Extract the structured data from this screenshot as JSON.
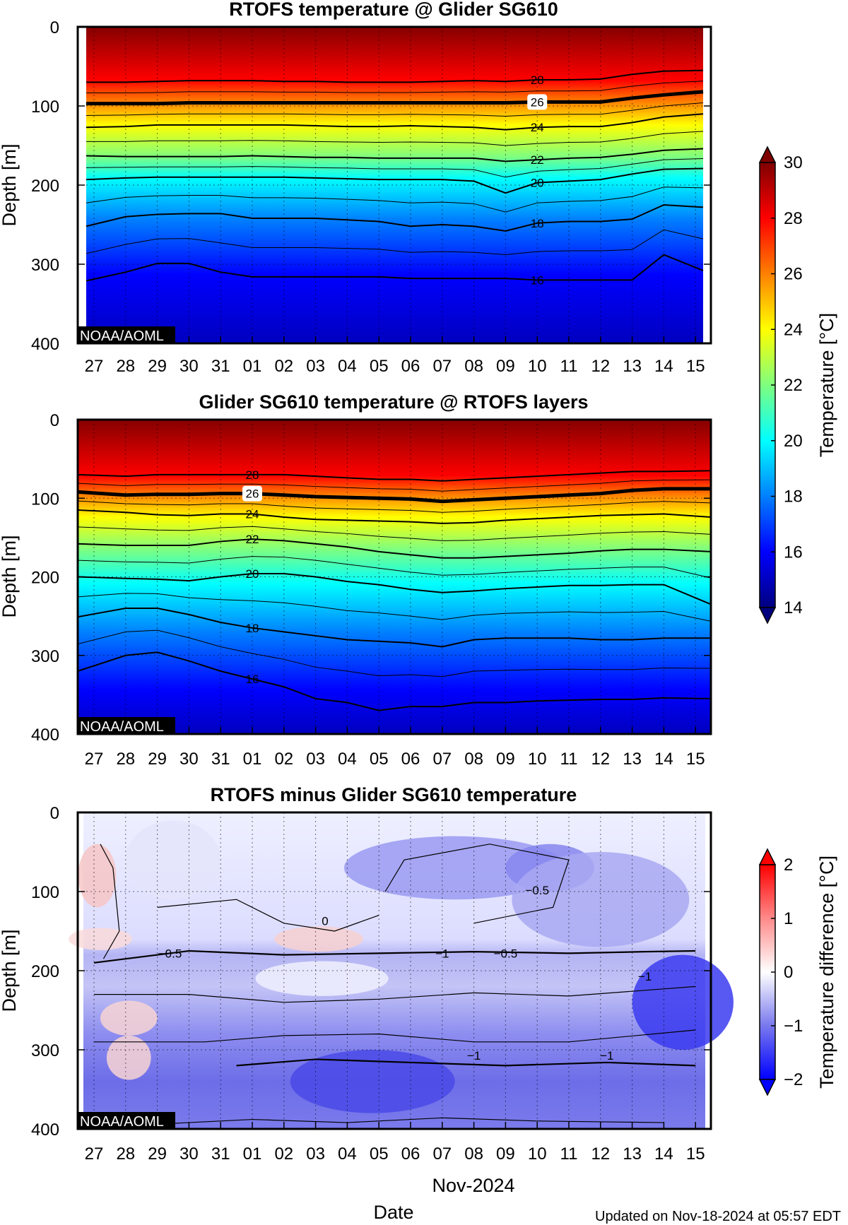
{
  "footer": {
    "updated": "Updated on Nov-18-2024 at 05:57 EDT"
  },
  "chart_data": [
    {
      "type": "heatmap",
      "title": "RTOFS temperature @ Glider SG610",
      "ylabel": "Depth [m]",
      "xlabel": "",
      "ylim": [
        400,
        0
      ],
      "yticks": [
        "0",
        "100",
        "200",
        "300",
        "400"
      ],
      "categories": [
        "27",
        "28",
        "29",
        "30",
        "31",
        "01",
        "02",
        "03",
        "04",
        "05",
        "06",
        "07",
        "08",
        "09",
        "10",
        "11",
        "12",
        "13",
        "14",
        "15"
      ],
      "watermark": "NOAA/AOML",
      "colorbar": "temperature",
      "grid": true,
      "contours": [
        {
          "value": 28,
          "label": "28",
          "depths": [
            70,
            70,
            69,
            68,
            68,
            68,
            69,
            69,
            70,
            70,
            70,
            69,
            68,
            69,
            67,
            67,
            66,
            60,
            56,
            55
          ]
        },
        {
          "value": 26,
          "label": "26",
          "bold": true,
          "depths": [
            97,
            97,
            97,
            96,
            96,
            96,
            96,
            96,
            96,
            96,
            96,
            96,
            96,
            96,
            95,
            95,
            95,
            90,
            86,
            82
          ]
        },
        {
          "value": 24,
          "label": "24",
          "depths": [
            127,
            126,
            124,
            124,
            124,
            124,
            124,
            125,
            126,
            126,
            125,
            126,
            127,
            130,
            127,
            126,
            126,
            121,
            114,
            110
          ]
        },
        {
          "value": 22,
          "label": "22",
          "depths": [
            163,
            164,
            164,
            164,
            164,
            163,
            164,
            165,
            165,
            166,
            166,
            166,
            166,
            170,
            168,
            166,
            165,
            161,
            156,
            154
          ]
        },
        {
          "value": 20,
          "label": "20",
          "depths": [
            193,
            191,
            190,
            190,
            190,
            190,
            190,
            191,
            192,
            193,
            193,
            193,
            195,
            210,
            197,
            195,
            193,
            186,
            180,
            179
          ]
        },
        {
          "value": 18,
          "label": "18",
          "depths": [
            252,
            240,
            237,
            236,
            236,
            242,
            242,
            242,
            244,
            246,
            252,
            250,
            252,
            258,
            248,
            246,
            246,
            243,
            225,
            228
          ]
        },
        {
          "value": 16,
          "label": "16",
          "depths": [
            321,
            310,
            299,
            299,
            310,
            316,
            316,
            316,
            316,
            316,
            318,
            318,
            318,
            318,
            320,
            320,
            320,
            320,
            288,
            308
          ]
        }
      ]
    },
    {
      "type": "heatmap",
      "title": "Glider SG610 temperature @ RTOFS layers",
      "ylabel": "Depth [m]",
      "xlabel": "",
      "ylim": [
        400,
        0
      ],
      "yticks": [
        "0",
        "100",
        "200",
        "300",
        "400"
      ],
      "categories": [
        "27",
        "28",
        "29",
        "30",
        "31",
        "01",
        "02",
        "03",
        "04",
        "05",
        "06",
        "07",
        "08",
        "09",
        "10",
        "11",
        "12",
        "13",
        "14",
        "15"
      ],
      "watermark": "NOAA/AOML",
      "colorbar": "temperature",
      "grid": true,
      "contours": [
        {
          "value": 28,
          "label": "28",
          "depths": [
            70,
            72,
            70,
            70,
            70,
            70,
            70,
            72,
            74,
            76,
            76,
            78,
            76,
            74,
            72,
            70,
            68,
            66,
            66,
            65
          ]
        },
        {
          "value": 26,
          "label": "26",
          "bold": true,
          "depths": [
            92,
            96,
            95,
            95,
            94,
            94,
            96,
            98,
            99,
            100,
            101,
            104,
            102,
            100,
            98,
            96,
            94,
            90,
            88,
            88
          ]
        },
        {
          "value": 24,
          "label": "24",
          "depths": [
            115,
            118,
            121,
            122,
            120,
            120,
            124,
            127,
            128,
            129,
            130,
            132,
            131,
            128,
            126,
            124,
            122,
            121,
            120,
            124
          ]
        },
        {
          "value": 22,
          "label": "22",
          "depths": [
            158,
            160,
            160,
            160,
            155,
            152,
            154,
            158,
            162,
            168,
            172,
            176,
            176,
            174,
            172,
            170,
            167,
            165,
            165,
            168
          ]
        },
        {
          "value": 20,
          "label": "20",
          "depths": [
            200,
            202,
            203,
            205,
            200,
            196,
            196,
            200,
            206,
            210,
            216,
            220,
            218,
            215,
            213,
            211,
            211,
            210,
            210,
            235
          ]
        },
        {
          "value": 18,
          "label": "18",
          "depths": [
            251,
            240,
            240,
            248,
            258,
            265,
            270,
            275,
            280,
            282,
            284,
            289,
            280,
            278,
            278,
            278,
            280,
            280,
            278,
            278
          ]
        },
        {
          "value": 16,
          "label": "16",
          "depths": [
            320,
            300,
            296,
            307,
            320,
            330,
            340,
            355,
            360,
            370,
            365,
            365,
            360,
            360,
            358,
            357,
            356,
            356,
            354,
            355
          ]
        }
      ]
    },
    {
      "type": "heatmap",
      "title": "RTOFS minus Glider SG610 temperature",
      "ylabel": "Depth [m]",
      "xlabel": "Date",
      "xgroup": "Nov-2024",
      "ylim": [
        400,
        0
      ],
      "yticks": [
        "0",
        "100",
        "200",
        "300",
        "400"
      ],
      "categories": [
        "27",
        "28",
        "29",
        "30",
        "31",
        "01",
        "02",
        "03",
        "04",
        "05",
        "06",
        "07",
        "08",
        "09",
        "10",
        "11",
        "12",
        "13",
        "14",
        "15"
      ],
      "watermark": "NOAA/AOML",
      "colorbar": "difference",
      "grid": true,
      "contour_labels": [
        {
          "text": "0",
          "x": 7.3,
          "y": 137
        },
        {
          "text": "−0.5",
          "x": 2.4,
          "y": 178
        },
        {
          "text": "−1",
          "x": 11.0,
          "y": 178
        },
        {
          "text": "−0.5",
          "x": 13.0,
          "y": 178
        },
        {
          "text": "−0.5",
          "x": 14.0,
          "y": 98
        },
        {
          "text": "−1",
          "x": 17.4,
          "y": 207
        },
        {
          "text": "−1",
          "x": 12.0,
          "y": 307
        },
        {
          "text": "−1",
          "x": 16.2,
          "y": 307
        }
      ]
    }
  ],
  "colorbars": {
    "temperature": {
      "label": "Temperature [°C]",
      "min": 14,
      "max": 30,
      "ticks": [
        "14",
        "16",
        "18",
        "20",
        "22",
        "24",
        "26",
        "28",
        "30"
      ]
    },
    "difference": {
      "label": "Temperature difference [°C]",
      "min": -2,
      "max": 2,
      "ticks": [
        "−2",
        "−1",
        "0",
        "1",
        "2"
      ]
    }
  }
}
